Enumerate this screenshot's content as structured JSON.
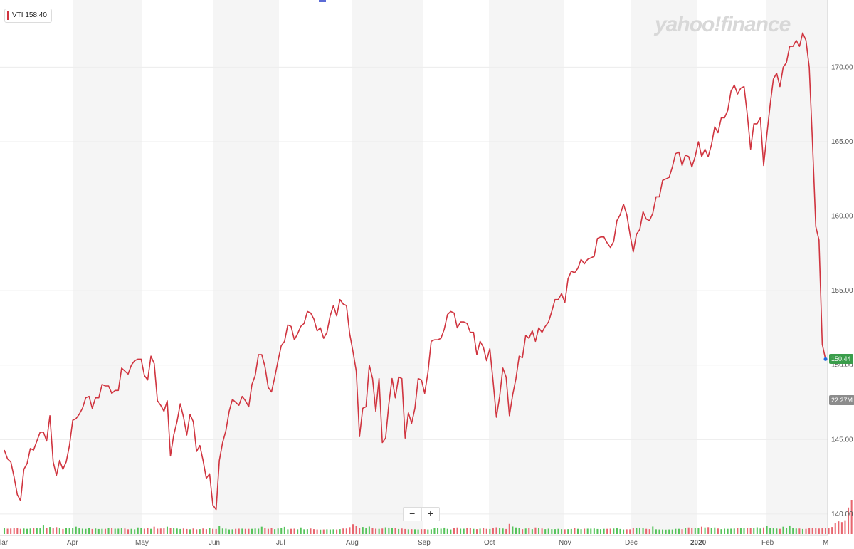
{
  "legend": {
    "ticker_label": "VTI 158.40"
  },
  "watermark": "yahoo!finance",
  "zoom": {
    "minus": "−",
    "plus": "+"
  },
  "price_tag": "150.44",
  "volume_tag": "22.27M",
  "colors": {
    "line": "#d0343f",
    "up": "#55c35a",
    "down": "#e8656e",
    "shade": "#f5f5f5",
    "price_tag_bg": "#3a9d4b",
    "volume_tag_bg": "#8c8c8c"
  },
  "chart_data": {
    "type": "line",
    "y_ticks": [
      "140.00",
      "145.00",
      "150.00",
      "155.00",
      "160.00",
      "165.00",
      "170.00"
    ],
    "x_ticks": [
      "lar",
      "Apr",
      "May",
      "Jun",
      "Jul",
      "Aug",
      "Sep",
      "Oct",
      "Nov",
      "Dec",
      "2020",
      "Feb",
      "M"
    ],
    "ylim": [
      138.8,
      172.6
    ],
    "series": [
      {
        "name": "VTI",
        "values": [
          144.3,
          143.7,
          143.5,
          142.5,
          141.3,
          140.9,
          143.0,
          143.4,
          144.4,
          144.3,
          144.9,
          145.5,
          145.5,
          144.9,
          146.6,
          143.5,
          142.6,
          143.6,
          143.0,
          143.5,
          144.6,
          146.3,
          146.4,
          146.7,
          147.1,
          147.8,
          147.9,
          147.1,
          147.8,
          147.8,
          148.7,
          148.6,
          148.6,
          148.1,
          148.3,
          148.3,
          149.8,
          149.6,
          149.4,
          150.0,
          150.3,
          150.4,
          150.4,
          149.3,
          149.0,
          150.6,
          150.1,
          147.6,
          147.3,
          146.9,
          147.6,
          143.9,
          145.3,
          146.2,
          147.4,
          146.5,
          145.3,
          146.7,
          146.2,
          144.2,
          144.6,
          143.6,
          142.4,
          142.7,
          140.6,
          140.3,
          143.6,
          144.8,
          145.6,
          146.9,
          147.7,
          147.5,
          147.3,
          147.9,
          147.6,
          147.2,
          148.7,
          149.3,
          150.7,
          150.7,
          149.9,
          148.5,
          148.2,
          149.2,
          150.3,
          151.3,
          151.6,
          152.7,
          152.6,
          151.7,
          152.1,
          152.6,
          152.8,
          153.6,
          153.5,
          153.1,
          152.3,
          152.5,
          151.8,
          152.2,
          153.3,
          154.0,
          153.3,
          154.4,
          154.1,
          154.0,
          152.1,
          150.9,
          149.6,
          145.2,
          147.1,
          147.2,
          150.0,
          149.1,
          146.9,
          149.1,
          144.8,
          145.1,
          147.4,
          149.1,
          147.8,
          149.2,
          149.1,
          145.1,
          146.8,
          146.1,
          147.1,
          149.1,
          149.0,
          148.1,
          149.5,
          151.6,
          151.7,
          151.7,
          151.8,
          152.4,
          153.4,
          153.6,
          153.5,
          152.5,
          152.9,
          152.9,
          152.8,
          152.2,
          152.2,
          150.7,
          151.6,
          151.2,
          150.3,
          151.1,
          148.9,
          146.5,
          147.9,
          149.8,
          149.2,
          146.6,
          148.0,
          149.1,
          150.6,
          150.5,
          152.0,
          151.8,
          152.3,
          151.6,
          152.5,
          152.2,
          152.6,
          152.9,
          153.6,
          154.4,
          154.4,
          154.8,
          154.2,
          155.8,
          156.3,
          156.2,
          156.5,
          157.1,
          156.8,
          157.1,
          157.2,
          157.3,
          158.5,
          158.6,
          158.6,
          158.2,
          157.9,
          158.3,
          159.7,
          160.1,
          160.8,
          160.1,
          158.8,
          157.6,
          158.8,
          159.1,
          160.3,
          159.8,
          159.7,
          160.2,
          161.3,
          161.3,
          162.4,
          162.5,
          162.6,
          163.3,
          164.2,
          164.3,
          163.4,
          164.1,
          164.0,
          163.3,
          164.0,
          165.0,
          164.0,
          164.5,
          164.0,
          164.8,
          166.0,
          165.6,
          166.6,
          166.6,
          167.1,
          168.4,
          168.8,
          168.2,
          168.6,
          168.7,
          166.8,
          164.5,
          166.2,
          166.2,
          166.6,
          163.4,
          165.5,
          167.5,
          169.2,
          169.6,
          168.7,
          170.0,
          170.3,
          171.4,
          171.4,
          171.8,
          171.4,
          172.3,
          171.8,
          170.0,
          164.9,
          159.3,
          158.4,
          151.4,
          150.4
        ]
      },
      {
        "name": "Volume",
        "values": [
          3.8,
          3.5,
          3.6,
          3.8,
          3.7,
          3.4,
          3.6,
          3.4,
          3.6,
          3.9,
          3.7,
          3.7,
          6.0,
          3.8,
          4.6,
          3.9,
          4.5,
          3.7,
          3.3,
          4.1,
          3.7,
          3.9,
          4.8,
          3.7,
          3.5,
          3.4,
          3.8,
          3.3,
          3.6,
          3.3,
          3.4,
          3.4,
          3.8,
          3.8,
          3.5,
          3.5,
          3.7,
          3.6,
          3.1,
          3.4,
          3.1,
          4.3,
          3.9,
          3.5,
          4.0,
          3.4,
          4.8,
          3.5,
          3.6,
          3.7,
          4.8,
          3.9,
          3.9,
          3.6,
          3.3,
          3.6,
          3.3,
          3.1,
          3.6,
          3.1,
          3.2,
          3.6,
          3.2,
          3.8,
          3.4,
          3.3,
          5.2,
          3.6,
          3.5,
          3.0,
          3.1,
          3.4,
          3.5,
          3.5,
          3.4,
          3.4,
          3.4,
          3.6,
          3.5,
          4.8,
          3.8,
          3.4,
          3.8,
          3.2,
          3.6,
          3.9,
          4.7,
          3.1,
          3.4,
          3.5,
          3.1,
          4.3,
          3.1,
          3.2,
          3.6,
          3.2,
          3.0,
          2.9,
          3.0,
          3.1,
          3.0,
          3.1,
          3.0,
          3.2,
          3.6,
          3.6,
          4.5,
          6.4,
          5.2,
          3.8,
          4.6,
          3.7,
          4.9,
          4.1,
          3.5,
          3.4,
          3.6,
          4.4,
          4.2,
          3.9,
          3.9,
          3.3,
          3.6,
          3.3,
          3.1,
          3.2,
          3.1,
          3.0,
          3.2,
          3.2,
          3.0,
          3.1,
          3.9,
          3.8,
          3.5,
          4.2,
          3.4,
          3.0,
          3.9,
          4.3,
          3.5,
          3.5,
          3.9,
          4.1,
          3.4,
          3.2,
          3.5,
          4.0,
          3.4,
          3.3,
          3.7,
          4.4,
          4.1,
          3.6,
          3.3,
          6.6,
          4.9,
          4.3,
          4.0,
          3.2,
          3.6,
          3.9,
          3.2,
          4.3,
          3.8,
          3.6,
          3.2,
          3.5,
          3.2,
          3.2,
          3.4,
          3.2,
          3.1,
          3.2,
          3.3,
          3.9,
          3.4,
          3.2,
          3.5,
          3.5,
          3.5,
          3.6,
          3.3,
          3.2,
          3.4,
          3.4,
          3.5,
          3.6,
          3.7,
          3.3,
          3.0,
          3.1,
          3.1,
          3.8,
          3.9,
          4.2,
          3.9,
          3.4,
          3.2,
          4.9,
          3.1,
          3.0,
          3.0,
          2.9,
          3.0,
          3.0,
          3.4,
          3.4,
          3.2,
          3.8,
          4.3,
          4.1,
          3.9,
          4.0,
          4.8,
          4.3,
          4.5,
          4.1,
          4.3,
          3.6,
          3.2,
          3.5,
          3.4,
          3.5,
          3.6,
          3.9,
          3.7,
          4.1,
          4.0,
          3.9,
          4.1,
          4.4,
          3.6,
          4.3,
          5.2,
          4.0,
          3.9,
          3.6,
          3.4,
          4.8,
          3.8,
          5.6,
          3.8,
          3.6,
          3.6,
          3.3,
          3.4,
          3.7,
          3.9,
          3.7,
          3.6,
          3.7,
          3.9,
          3.7,
          4.6,
          7.2,
          8.3,
          7.8,
          9.0,
          17.3,
          22.3
        ]
      }
    ],
    "volume_max": 22.3,
    "grid": true,
    "legend": "top-left"
  }
}
